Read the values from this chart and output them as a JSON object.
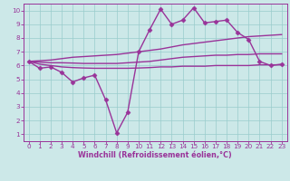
{
  "xlabel": "Windchill (Refroidissement éolien,°C)",
  "bg_color": "#cce8e8",
  "line_color": "#993399",
  "x_data": [
    0,
    1,
    2,
    3,
    4,
    5,
    6,
    7,
    8,
    9,
    10,
    11,
    12,
    13,
    14,
    15,
    16,
    17,
    18,
    19,
    20,
    21,
    22,
    23
  ],
  "y_main": [
    6.3,
    5.8,
    5.9,
    5.5,
    4.8,
    5.1,
    5.3,
    3.5,
    1.1,
    2.6,
    7.0,
    8.6,
    10.1,
    9.0,
    9.3,
    10.2,
    9.1,
    9.2,
    9.3,
    8.4,
    7.9,
    6.3,
    6.0,
    6.1
  ],
  "y_upper": [
    6.3,
    6.35,
    6.4,
    6.5,
    6.6,
    6.65,
    6.7,
    6.75,
    6.8,
    6.9,
    7.0,
    7.1,
    7.2,
    7.35,
    7.5,
    7.6,
    7.7,
    7.8,
    7.9,
    8.0,
    8.1,
    8.15,
    8.2,
    8.25
  ],
  "y_middle": [
    6.3,
    6.25,
    6.2,
    6.2,
    6.18,
    6.15,
    6.15,
    6.15,
    6.15,
    6.2,
    6.25,
    6.3,
    6.4,
    6.5,
    6.6,
    6.65,
    6.7,
    6.75,
    6.75,
    6.8,
    6.8,
    6.85,
    6.85,
    6.85
  ],
  "y_lower": [
    6.3,
    6.1,
    6.0,
    5.9,
    5.85,
    5.82,
    5.8,
    5.8,
    5.8,
    5.8,
    5.82,
    5.85,
    5.9,
    5.9,
    5.95,
    5.95,
    5.95,
    6.0,
    6.0,
    6.0,
    6.0,
    6.05,
    6.05,
    6.05
  ],
  "xlim": [
    -0.5,
    23.5
  ],
  "ylim": [
    0.5,
    10.5
  ],
  "yticks": [
    1,
    2,
    3,
    4,
    5,
    6,
    7,
    8,
    9,
    10
  ],
  "xticks": [
    0,
    1,
    2,
    3,
    4,
    5,
    6,
    7,
    8,
    9,
    10,
    11,
    12,
    13,
    14,
    15,
    16,
    17,
    18,
    19,
    20,
    21,
    22,
    23
  ],
  "grid_color": "#99cccc",
  "font_color": "#993399",
  "marker": "D",
  "markersize": 2.5,
  "linewidth": 1.0,
  "tick_fontsize": 5.2,
  "xlabel_fontsize": 5.8
}
